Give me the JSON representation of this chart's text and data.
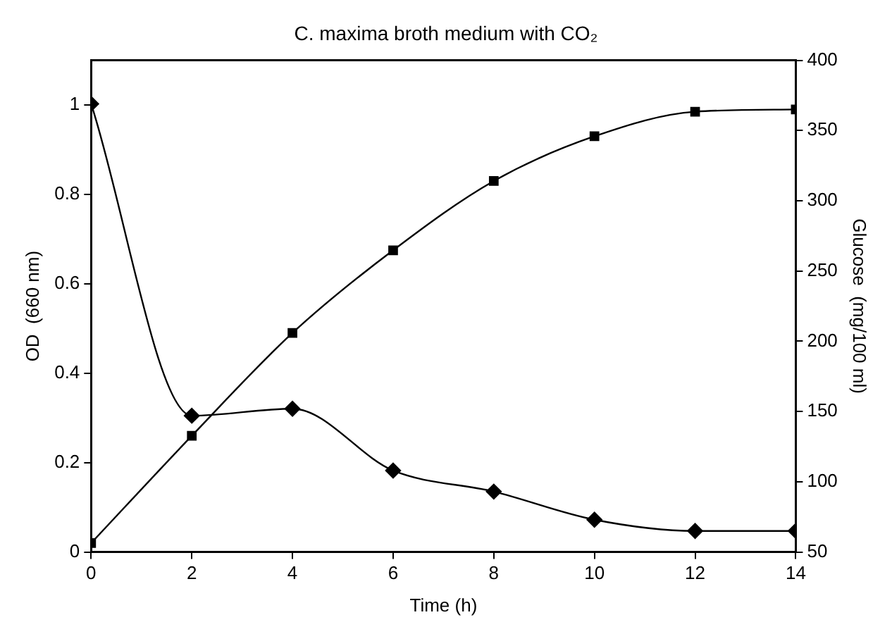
{
  "chart_data": {
    "type": "line",
    "title": "C. maxima broth medium with CO₂",
    "xlabel": "Time (h)",
    "ylabel": "OD  (660 nm)",
    "y2label": "Glucose  (mg/100 ml)",
    "x": [
      0,
      2,
      4,
      6,
      8,
      10,
      12,
      14
    ],
    "series": [
      {
        "color": "#000000",
        "marker": "square",
        "values": [
          0.02,
          0.26,
          0.49,
          0.675,
          0.83,
          0.93,
          0.985,
          0.99
        ]
      },
      {
        "color": "#000000",
        "marker": "diamond",
        "axis": "y2",
        "values": [
          369,
          147,
          152,
          108,
          93,
          73,
          65,
          65
        ]
      }
    ],
    "xlim": [
      0,
      14
    ],
    "xticks": [
      0,
      2,
      4,
      6,
      8,
      10,
      12,
      14
    ],
    "ylim": [
      0,
      1.1
    ],
    "yticks": [
      0,
      0.2,
      0.4,
      0.6,
      0.8,
      1
    ],
    "y2lim": [
      50,
      400
    ],
    "y2ticks": [
      50,
      100,
      150,
      200,
      250,
      300,
      350,
      400
    ],
    "grid": false,
    "legend": false,
    "line_style": "solid"
  }
}
